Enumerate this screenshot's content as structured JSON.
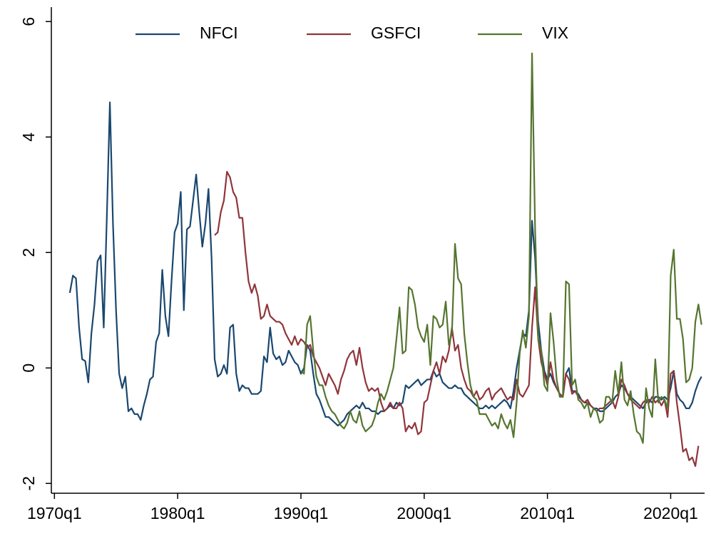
{
  "chart_data": {
    "type": "line",
    "x": [
      "1971q2",
      "1971q3",
      "1971q4",
      "1972q1",
      "1972q2",
      "1972q3",
      "1972q4",
      "1973q1",
      "1973q2",
      "1973q3",
      "1973q4",
      "1974q1",
      "1974q2",
      "1974q3",
      "1974q4",
      "1975q1",
      "1975q2",
      "1975q3",
      "1975q4",
      "1976q1",
      "1976q2",
      "1976q3",
      "1976q4",
      "1977q1",
      "1977q2",
      "1977q3",
      "1977q4",
      "1978q1",
      "1978q2",
      "1978q3",
      "1978q4",
      "1979q1",
      "1979q2",
      "1979q3",
      "1979q4",
      "1980q1",
      "1980q2",
      "1980q3",
      "1980q4",
      "1981q1",
      "1981q2",
      "1981q3",
      "1981q4",
      "1982q1",
      "1982q2",
      "1982q3",
      "1982q4",
      "1983q1",
      "1983q2",
      "1983q3",
      "1983q4",
      "1984q1",
      "1984q2",
      "1984q3",
      "1984q4",
      "1985q1",
      "1985q2",
      "1985q3",
      "1985q4",
      "1986q1",
      "1986q2",
      "1986q3",
      "1986q4",
      "1987q1",
      "1987q2",
      "1987q3",
      "1987q4",
      "1988q1",
      "1988q2",
      "1988q3",
      "1988q4",
      "1989q1",
      "1989q2",
      "1989q3",
      "1989q4",
      "1990q1",
      "1990q2",
      "1990q3",
      "1990q4",
      "1991q1",
      "1991q2",
      "1991q3",
      "1991q4",
      "1992q1",
      "1992q2",
      "1992q3",
      "1992q4",
      "1993q1",
      "1993q2",
      "1993q3",
      "1993q4",
      "1994q1",
      "1994q2",
      "1994q3",
      "1994q4",
      "1995q1",
      "1995q2",
      "1995q3",
      "1995q4",
      "1996q1",
      "1996q2",
      "1996q3",
      "1996q4",
      "1997q1",
      "1997q2",
      "1997q3",
      "1997q4",
      "1998q1",
      "1998q2",
      "1998q3",
      "1998q4",
      "1999q1",
      "1999q2",
      "1999q3",
      "1999q4",
      "2000q1",
      "2000q2",
      "2000q3",
      "2000q4",
      "2001q1",
      "2001q2",
      "2001q3",
      "2001q4",
      "2002q1",
      "2002q2",
      "2002q3",
      "2002q4",
      "2003q1",
      "2003q2",
      "2003q3",
      "2003q4",
      "2004q1",
      "2004q2",
      "2004q3",
      "2004q4",
      "2005q1",
      "2005q2",
      "2005q3",
      "2005q4",
      "2006q1",
      "2006q2",
      "2006q3",
      "2006q4",
      "2007q1",
      "2007q2",
      "2007q3",
      "2007q4",
      "2008q1",
      "2008q2",
      "2008q3",
      "2008q4",
      "2009q1",
      "2009q2",
      "2009q3",
      "2009q4",
      "2010q1",
      "2010q2",
      "2010q3",
      "2010q4",
      "2011q1",
      "2011q2",
      "2011q3",
      "2011q4",
      "2012q1",
      "2012q2",
      "2012q3",
      "2012q4",
      "2013q1",
      "2013q2",
      "2013q3",
      "2013q4",
      "2014q1",
      "2014q2",
      "2014q3",
      "2014q4",
      "2015q1",
      "2015q2",
      "2015q3",
      "2015q4",
      "2016q1",
      "2016q2",
      "2016q3",
      "2016q4",
      "2017q1",
      "2017q2",
      "2017q3",
      "2017q4",
      "2018q1",
      "2018q2",
      "2018q3",
      "2018q4",
      "2019q1",
      "2019q2",
      "2019q3",
      "2019q4",
      "2020q1",
      "2020q2",
      "2020q3",
      "2020q4",
      "2021q1",
      "2021q2",
      "2021q3",
      "2021q4",
      "2022q1",
      "2022q2",
      "2022q3"
    ],
    "series": [
      {
        "name": "NFCI",
        "color": "#1a476f",
        "values": [
          1.3,
          1.6,
          1.55,
          0.7,
          0.15,
          0.12,
          -0.25,
          0.6,
          1.1,
          1.85,
          1.95,
          0.7,
          2.6,
          4.6,
          2.5,
          1.0,
          -0.1,
          -0.35,
          -0.15,
          -0.75,
          -0.7,
          -0.8,
          -0.8,
          -0.9,
          -0.65,
          -0.45,
          -0.2,
          -0.15,
          0.45,
          0.6,
          1.7,
          0.9,
          0.55,
          1.5,
          2.35,
          2.5,
          3.05,
          1.0,
          2.4,
          2.45,
          2.9,
          3.35,
          2.7,
          2.1,
          2.5,
          3.1,
          1.9,
          0.15,
          -0.15,
          -0.1,
          0.05,
          -0.1,
          0.7,
          0.75,
          -0.1,
          -0.4,
          -0.3,
          -0.35,
          -0.35,
          -0.45,
          -0.45,
          -0.45,
          -0.4,
          0.2,
          0.1,
          0.7,
          0.25,
          0.15,
          0.2,
          0.05,
          0.1,
          0.3,
          0.2,
          0.1,
          0.05,
          -0.1,
          0.0,
          0.4,
          0.3,
          -0.1,
          -0.45,
          -0.55,
          -0.7,
          -0.85,
          -0.85,
          -0.9,
          -0.95,
          -1.0,
          -0.95,
          -0.9,
          -0.8,
          -0.75,
          -0.7,
          -0.65,
          -0.7,
          -0.6,
          -0.7,
          -0.7,
          -0.75,
          -0.75,
          -0.8,
          -0.75,
          -0.75,
          -0.7,
          -0.65,
          -0.7,
          -0.6,
          -0.65,
          -0.6,
          -0.3,
          -0.35,
          -0.3,
          -0.25,
          -0.2,
          -0.3,
          -0.25,
          -0.2,
          -0.2,
          -0.05,
          -0.15,
          -0.1,
          -0.25,
          -0.3,
          -0.35,
          -0.35,
          -0.3,
          -0.35,
          -0.35,
          -0.45,
          -0.5,
          -0.55,
          -0.6,
          -0.65,
          -0.7,
          -0.7,
          -0.65,
          -0.7,
          -0.65,
          -0.7,
          -0.65,
          -0.6,
          -0.55,
          -0.6,
          -0.7,
          -0.4,
          0.0,
          0.3,
          0.6,
          0.55,
          1.0,
          2.55,
          1.9,
          0.8,
          0.3,
          -0.05,
          -0.2,
          -0.1,
          -0.25,
          -0.35,
          -0.45,
          -0.5,
          -0.1,
          0.0,
          -0.4,
          -0.4,
          -0.45,
          -0.55,
          -0.6,
          -0.6,
          -0.65,
          -0.7,
          -0.7,
          -0.75,
          -0.75,
          -0.7,
          -0.65,
          -0.6,
          -0.5,
          -0.45,
          -0.3,
          -0.35,
          -0.45,
          -0.5,
          -0.55,
          -0.6,
          -0.65,
          -0.7,
          -0.6,
          -0.55,
          -0.6,
          -0.5,
          -0.5,
          -0.55,
          -0.5,
          -0.55,
          -0.35,
          -0.05,
          -0.45,
          -0.55,
          -0.6,
          -0.7,
          -0.7,
          -0.6,
          -0.4,
          -0.25,
          -0.15
        ]
      },
      {
        "name": "GSFCI",
        "color": "#90353b",
        "values": [
          null,
          null,
          null,
          null,
          null,
          null,
          null,
          null,
          null,
          null,
          null,
          null,
          null,
          null,
          null,
          null,
          null,
          null,
          null,
          null,
          null,
          null,
          null,
          null,
          null,
          null,
          null,
          null,
          null,
          null,
          null,
          null,
          null,
          null,
          null,
          null,
          null,
          null,
          null,
          null,
          null,
          null,
          null,
          null,
          null,
          null,
          null,
          2.3,
          2.35,
          2.7,
          2.9,
          3.4,
          3.3,
          3.05,
          2.95,
          2.6,
          2.6,
          2.0,
          1.5,
          1.3,
          1.45,
          1.25,
          0.85,
          0.9,
          1.1,
          0.9,
          0.85,
          0.8,
          0.8,
          0.75,
          0.6,
          0.5,
          0.4,
          0.55,
          0.4,
          0.5,
          0.45,
          0.35,
          0.4,
          0.2,
          0.1,
          0.0,
          -0.15,
          -0.3,
          -0.1,
          -0.2,
          -0.3,
          -0.45,
          -0.2,
          -0.05,
          0.15,
          0.25,
          0.3,
          0.05,
          0.35,
          0.0,
          -0.25,
          -0.4,
          -0.35,
          -0.4,
          -0.35,
          -0.6,
          -0.75,
          -0.7,
          -0.6,
          -0.7,
          -0.7,
          -0.6,
          -0.7,
          -1.1,
          -1.0,
          -1.05,
          -0.95,
          -1.15,
          -1.1,
          -0.6,
          -0.55,
          -0.3,
          -0.05,
          0.1,
          -0.1,
          0.2,
          0.1,
          0.3,
          0.7,
          0.3,
          0.4,
          0.0,
          -0.2,
          -0.35,
          -0.4,
          -0.5,
          -0.4,
          -0.55,
          -0.5,
          -0.4,
          -0.35,
          -0.55,
          -0.45,
          -0.4,
          -0.35,
          -0.45,
          -0.55,
          -0.5,
          -0.55,
          -0.2,
          -0.45,
          -0.5,
          -0.4,
          -0.3,
          0.7,
          1.4,
          0.5,
          0.1,
          -0.1,
          -0.3,
          0.1,
          -0.2,
          -0.35,
          -0.45,
          -0.5,
          -0.1,
          -0.2,
          -0.45,
          -0.4,
          -0.5,
          -0.55,
          -0.6,
          -0.55,
          -0.65,
          -0.7,
          -0.75,
          -0.7,
          -0.7,
          -0.65,
          -0.6,
          -0.55,
          -0.7,
          -0.5,
          -0.2,
          -0.3,
          -0.45,
          -0.55,
          -0.6,
          -0.65,
          -0.7,
          -0.6,
          -0.55,
          -0.6,
          -0.5,
          -0.6,
          -0.55,
          -0.65,
          -0.55,
          -0.85,
          -0.1,
          -0.05,
          -0.6,
          -1.0,
          -1.45,
          -1.4,
          -1.6,
          -1.55,
          -1.7,
          -1.35,
          null
        ]
      },
      {
        "name": "VIX",
        "color": "#55752f",
        "values": [
          null,
          null,
          null,
          null,
          null,
          null,
          null,
          null,
          null,
          null,
          null,
          null,
          null,
          null,
          null,
          null,
          null,
          null,
          null,
          null,
          null,
          null,
          null,
          null,
          null,
          null,
          null,
          null,
          null,
          null,
          null,
          null,
          null,
          null,
          null,
          null,
          null,
          null,
          null,
          null,
          null,
          null,
          null,
          null,
          null,
          null,
          null,
          null,
          null,
          null,
          null,
          null,
          null,
          null,
          null,
          null,
          null,
          null,
          null,
          null,
          null,
          null,
          null,
          null,
          null,
          null,
          null,
          null,
          null,
          null,
          null,
          null,
          null,
          null,
          null,
          -0.05,
          -0.1,
          0.75,
          0.9,
          0.3,
          -0.15,
          -0.3,
          -0.3,
          -0.5,
          -0.65,
          -0.75,
          -0.8,
          -0.9,
          -1.0,
          -1.05,
          -0.95,
          -0.75,
          -0.9,
          -0.95,
          -0.75,
          -1.0,
          -1.1,
          -1.05,
          -1.0,
          -0.85,
          -0.6,
          -0.45,
          -0.55,
          -0.4,
          -0.2,
          0.0,
          0.5,
          1.05,
          0.25,
          0.3,
          1.4,
          1.35,
          1.1,
          0.7,
          0.55,
          0.45,
          0.75,
          0.05,
          0.9,
          0.85,
          0.7,
          0.75,
          1.15,
          0.4,
          0.6,
          2.15,
          1.55,
          1.45,
          0.6,
          0.1,
          -0.3,
          -0.5,
          -0.55,
          -0.8,
          -0.8,
          -0.8,
          -0.9,
          -1.0,
          -0.95,
          -1.05,
          -0.8,
          -0.95,
          -1.05,
          -0.9,
          -1.2,
          -0.6,
          0.25,
          0.65,
          0.35,
          0.9,
          5.45,
          2.4,
          0.5,
          0.3,
          -0.3,
          -0.4,
          0.95,
          0.45,
          -0.2,
          -0.5,
          -0.5,
          1.5,
          1.45,
          -0.3,
          -0.2,
          -0.55,
          -0.6,
          -0.7,
          -0.6,
          -0.85,
          -0.7,
          -0.75,
          -0.95,
          -0.9,
          -0.5,
          -0.5,
          -0.6,
          -0.05,
          -0.45,
          0.1,
          -0.55,
          -0.65,
          -0.4,
          -0.8,
          -1.1,
          -1.15,
          -1.3,
          -0.35,
          -0.7,
          -0.85,
          0.15,
          -0.6,
          -0.5,
          -0.55,
          -0.7,
          1.6,
          2.05,
          0.85,
          0.85,
          0.5,
          -0.25,
          -0.2,
          0.0,
          0.8,
          1.1,
          0.75
        ]
      }
    ],
    "xlim": [
      "1969q4",
      "2022q4"
    ],
    "xticks": [
      "1970q1",
      "1980q1",
      "1990q1",
      "2000q1",
      "2010q1",
      "2020q1"
    ],
    "ylim": [
      -2.17,
      6.25
    ],
    "yticks": [
      -2,
      0,
      2,
      4,
      6
    ],
    "grid": false,
    "legend": "top"
  }
}
